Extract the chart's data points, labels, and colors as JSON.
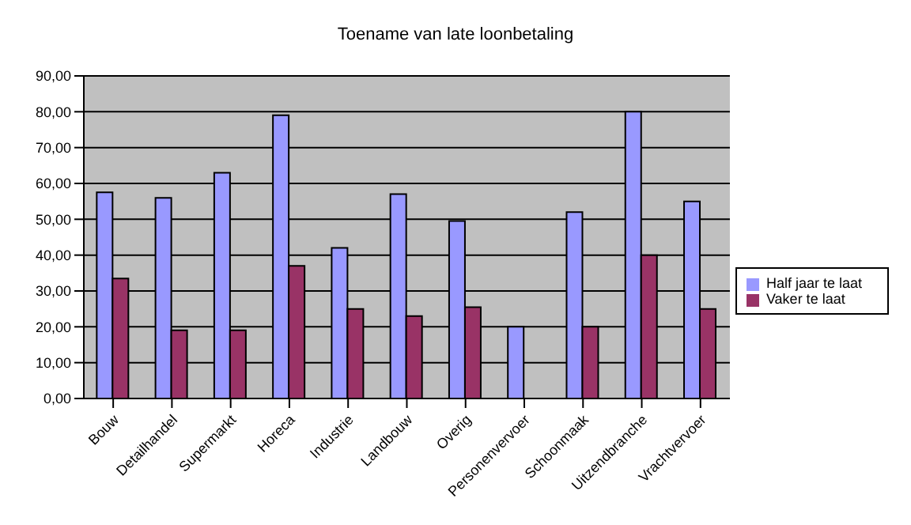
{
  "chart_data": {
    "type": "bar",
    "title": "Toename van late loonbetaling",
    "categories": [
      "Bouw",
      "Detailhandel",
      "Supermarkt",
      "Horeca",
      "Industrie",
      "Landbouw",
      "Overig",
      "Personenvervoer",
      "Schoonmaak",
      "Uitzendbranche",
      "Vrachtvervoer"
    ],
    "series": [
      {
        "name": "Half jaar te laat",
        "color": "#9999ff",
        "values": [
          57.5,
          56,
          63,
          79,
          42,
          57,
          49.5,
          20,
          52,
          80,
          55
        ]
      },
      {
        "name": "Vaker te laat",
        "color": "#993366",
        "values": [
          33.5,
          19,
          19,
          37,
          25,
          23,
          25.5,
          null,
          20,
          40,
          25
        ]
      }
    ],
    "ylim": [
      0,
      90
    ],
    "yticks": [
      {
        "value": 0,
        "label": "0,00"
      },
      {
        "value": 10,
        "label": "10,00"
      },
      {
        "value": 20,
        "label": "20,00"
      },
      {
        "value": 30,
        "label": "30,00"
      },
      {
        "value": 40,
        "label": "40,00"
      },
      {
        "value": 50,
        "label": "50,00"
      },
      {
        "value": 60,
        "label": "60,00"
      },
      {
        "value": 70,
        "label": "70,00"
      },
      {
        "value": 80,
        "label": "80,00"
      },
      {
        "value": 90,
        "label": "90,00"
      }
    ],
    "grid": "y",
    "legend": "right"
  }
}
